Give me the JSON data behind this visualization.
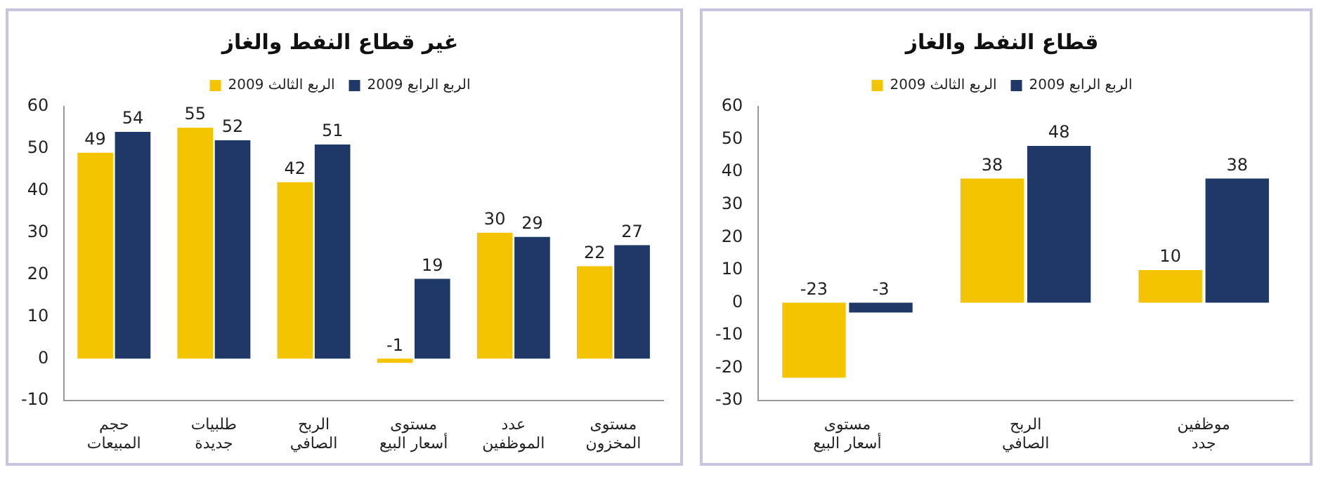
{
  "chart_data": [
    {
      "type": "bar",
      "title": "غير قطاع النفط والغاز",
      "categories": [
        "حجم\nالمبيعات",
        "طلبيات\nجديدة",
        "الربح\nالصافي",
        "مستوى\nأسعار البيع",
        "عدد\nالموظفين",
        "مستوى\nالمخزون"
      ],
      "series": [
        {
          "name": "الربع الثالث 2009",
          "color": "#f5c400",
          "values": [
            49,
            55,
            42,
            -1,
            30,
            22
          ]
        },
        {
          "name": "الربع الرابع 2009",
          "color": "#1f3868",
          "values": [
            54,
            52,
            51,
            19,
            29,
            27
          ]
        }
      ],
      "ylim": [
        -10,
        60
      ],
      "yticks": [
        -10,
        0,
        10,
        20,
        30,
        40,
        50,
        60
      ],
      "data_labels": true,
      "legend": "top",
      "grid": false
    },
    {
      "type": "bar",
      "title": "قطاع النفط والغاز",
      "categories": [
        "مستوى\nأسعار البيع",
        "الربح\nالصافي",
        "موظفين\nجدد"
      ],
      "series": [
        {
          "name": "الربع الثالث 2009",
          "color": "#f5c400",
          "values": [
            -23,
            38,
            10
          ]
        },
        {
          "name": "الربع الرابع 2009",
          "color": "#1f3868",
          "values": [
            -3,
            48,
            38
          ]
        }
      ],
      "ylim": [
        -30,
        60
      ],
      "yticks": [
        -30,
        -20,
        -10,
        0,
        10,
        20,
        30,
        40,
        50,
        60
      ],
      "data_labels": true,
      "legend": "top",
      "grid": false
    }
  ]
}
